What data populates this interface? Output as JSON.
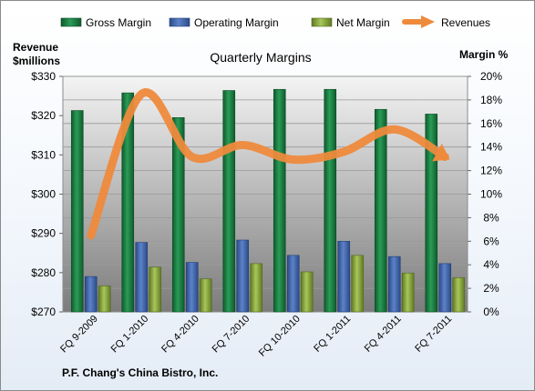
{
  "chart_data": {
    "type": "bar",
    "title": "Quarterly Margins",
    "footer": "P.F. Chang's China Bistro, Inc.",
    "y_left_label_line1": "Revenue",
    "y_left_label_line2": "$millions",
    "y_right_label": "Margin %",
    "categories": [
      "FQ 9-2009",
      "FQ 1-2010",
      "FQ 4-2010",
      "FQ 7-2010",
      "FQ 10-2010",
      "FQ 1-2011",
      "FQ 4-2011",
      "FQ 7-2011"
    ],
    "y_left": {
      "min": 270,
      "max": 330,
      "step": 10,
      "ticks": [
        "$270",
        "$280",
        "$290",
        "$300",
        "$310",
        "$320",
        "$330"
      ]
    },
    "y_right": {
      "min": 0,
      "max": 20,
      "step": 2,
      "ticks": [
        "0%",
        "2%",
        "4%",
        "6%",
        "8%",
        "10%",
        "12%",
        "14%",
        "16%",
        "18%",
        "20%"
      ]
    },
    "series": [
      {
        "name": "Gross Margin",
        "kind": "bar",
        "color": "#1f8a4c",
        "values": [
          17.1,
          18.6,
          16.5,
          18.8,
          18.9,
          18.9,
          17.2,
          16.8
        ]
      },
      {
        "name": "Operating Margin",
        "kind": "bar",
        "color": "#4a70b8",
        "values": [
          3.0,
          5.9,
          4.2,
          6.1,
          4.8,
          6.0,
          4.7,
          4.1
        ]
      },
      {
        "name": "Net Margin",
        "kind": "bar",
        "color": "#98b84e",
        "values": [
          2.2,
          3.8,
          2.8,
          4.1,
          3.4,
          4.8,
          3.3,
          2.9
        ]
      },
      {
        "name": "Revenues",
        "kind": "line",
        "color": "#ee8a3c",
        "axis": "left",
        "values": [
          289.5,
          325.5,
          309.5,
          312.5,
          308.8,
          310.8,
          316.5,
          309.5
        ]
      }
    ],
    "grid": true,
    "legend": "top"
  }
}
